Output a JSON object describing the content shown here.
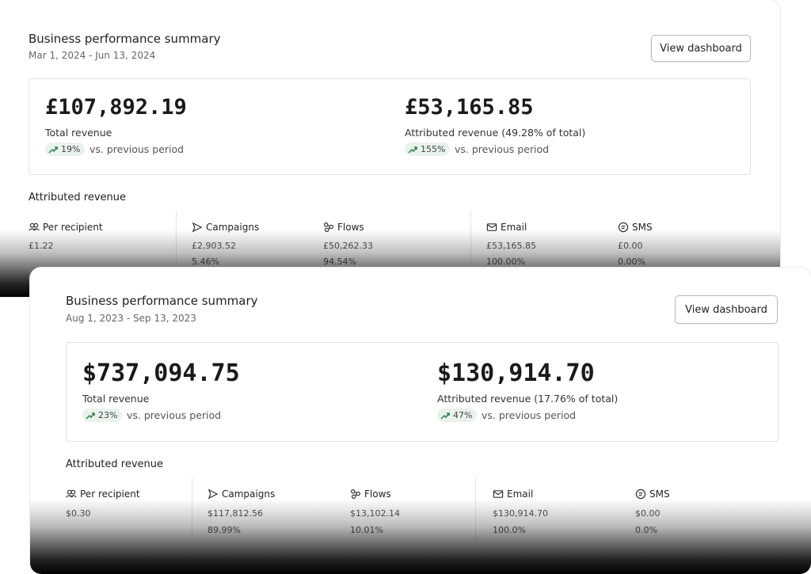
{
  "cards": [
    {
      "title": "Business performance summary",
      "date_range": "Mar 1, 2024 - Jun 13, 2024",
      "button": "View dashboard",
      "metrics": [
        {
          "value": "£107,892.19",
          "label": "Total revenue",
          "change": "19%",
          "change_text": "vs. previous period"
        },
        {
          "value": "£53,165.85",
          "label": "Attributed revenue (49.28% of total)",
          "change": "155%",
          "change_text": "vs. previous period"
        }
      ],
      "section_title": "Attributed revenue",
      "stats": [
        {
          "label": "Per recipient",
          "value": "£1.22"
        },
        {
          "label": "Campaigns",
          "value": "£2,903.52",
          "percent": "5.46%"
        },
        {
          "label": "Flows",
          "value": "£50,262.33",
          "percent": "94.54%"
        },
        {
          "label": "Email",
          "value": "£53,165.85",
          "percent": "100.00%"
        },
        {
          "label": "SMS",
          "value": "£0.00",
          "percent": "0.00%"
        }
      ]
    },
    {
      "title": "Business performance summary",
      "date_range": "Aug 1, 2023 - Sep 13, 2023",
      "button": "View dashboard",
      "metrics": [
        {
          "value": "$737,094.75",
          "label": "Total revenue",
          "change": "23%",
          "change_text": "vs. previous period"
        },
        {
          "value": "$130,914.70",
          "label": "Attributed revenue (17.76% of total)",
          "change": "47%",
          "change_text": "vs. previous period"
        }
      ],
      "section_title": "Attributed revenue",
      "stats": [
        {
          "label": "Per recipient",
          "value": "$0.30"
        },
        {
          "label": "Campaigns",
          "value": "$117,812.56",
          "percent": "89.99%"
        },
        {
          "label": "Flows",
          "value": "$13,102.14",
          "percent": "10.01%"
        },
        {
          "label": "Email",
          "value": "$130,914.70",
          "percent": "100.0%"
        },
        {
          "label": "SMS",
          "value": "$0.00",
          "percent": "0.0%"
        }
      ]
    }
  ]
}
